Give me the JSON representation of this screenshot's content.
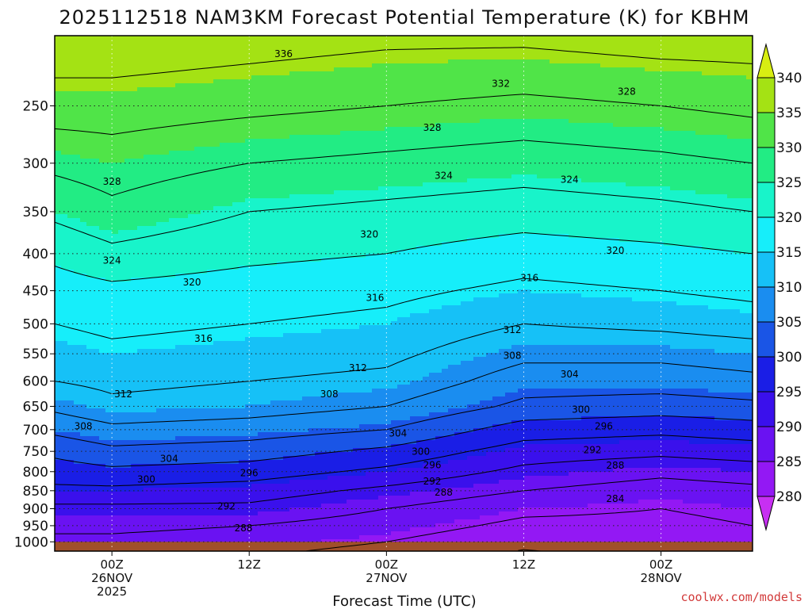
{
  "chart_data": {
    "type": "heatmap",
    "title": "2025112518 NAM3KM Forecast Potential Temperature (K) for KBHM",
    "xlabel": "Forecast Time (UTC)",
    "ylabel": "",
    "credit": "coolwx.com/models",
    "x_hours_range": [
      -5,
      56
    ],
    "x_ticks": [
      {
        "hour": 0,
        "lines": [
          "00Z",
          "26NOV",
          "2025"
        ]
      },
      {
        "hour": 12,
        "lines": [
          "12Z"
        ]
      },
      {
        "hour": 24,
        "lines": [
          "00Z",
          "27NOV"
        ]
      },
      {
        "hour": 36,
        "lines": [
          "12Z"
        ]
      },
      {
        "hour": 48,
        "lines": [
          "00Z",
          "28NOV"
        ]
      }
    ],
    "y_scale": "log",
    "y_range": [
      1030,
      200
    ],
    "y_ticks": [
      250,
      300,
      350,
      400,
      450,
      500,
      550,
      600,
      650,
      700,
      750,
      800,
      850,
      900,
      950,
      1000
    ],
    "grid": true,
    "colorbar": {
      "levels": [
        280,
        285,
        290,
        295,
        300,
        305,
        310,
        315,
        320,
        325,
        330,
        335,
        340
      ],
      "colors": [
        "#c72ff2",
        "#9318f4",
        "#6a12f2",
        "#3a10ec",
        "#1a1ee6",
        "#1a55e6",
        "#1a8df0",
        "#16c1f7",
        "#16eefa",
        "#18f4ca",
        "#22ec84",
        "#50e448",
        "#a4e214",
        "#d8ee12"
      ]
    },
    "profile_samples": [
      {
        "hour": -5,
        "pressure": [
          1000,
          950,
          900,
          850,
          800,
          750,
          700,
          650,
          600,
          550,
          500,
          450,
          400,
          350,
          300,
          250,
          200
        ],
        "theta": [
          287,
          289,
          291,
          295,
          298,
          301,
          305,
          309,
          312,
          314,
          316,
          318,
          321,
          325,
          329,
          334,
          339
        ]
      },
      {
        "hour": 0,
        "pressure": [
          1000,
          950,
          900,
          850,
          800,
          750,
          700,
          650,
          600,
          550,
          500,
          450,
          400,
          350,
          300,
          250,
          200
        ],
        "theta": [
          287,
          289,
          291,
          295,
          299,
          303,
          307,
          311,
          313,
          315,
          317,
          319,
          323,
          327,
          330,
          334,
          339
        ]
      },
      {
        "hour": 12,
        "pressure": [
          1000,
          950,
          900,
          850,
          800,
          750,
          700,
          650,
          600,
          550,
          500,
          450,
          400,
          350,
          300,
          250,
          200
        ],
        "theta": [
          286,
          288,
          291,
          294,
          298,
          302,
          306,
          310,
          312,
          314,
          316,
          318,
          321,
          324,
          328,
          333,
          338
        ]
      },
      {
        "hour": 24,
        "pressure": [
          1000,
          950,
          900,
          850,
          800,
          750,
          700,
          650,
          600,
          550,
          500,
          450,
          400,
          350,
          300,
          250,
          200
        ],
        "theta": [
          284,
          286,
          288,
          291,
          295,
          299,
          304,
          308,
          311,
          313,
          315,
          317,
          320,
          323,
          327,
          332,
          337
        ]
      },
      {
        "hour": 36,
        "pressure": [
          1000,
          950,
          900,
          850,
          800,
          750,
          700,
          650,
          600,
          550,
          500,
          450,
          400,
          350,
          300,
          250,
          200
        ],
        "theta": [
          281,
          283,
          285,
          288,
          291,
          294,
          298,
          303,
          306,
          309,
          312,
          315,
          318,
          322,
          326,
          331,
          337
        ]
      },
      {
        "hour": 48,
        "pressure": [
          1000,
          950,
          900,
          850,
          800,
          750,
          700,
          650,
          600,
          550,
          500,
          450,
          400,
          350,
          300,
          250,
          200
        ],
        "theta": [
          282,
          283,
          284,
          286,
          289,
          293,
          297,
          302,
          306,
          309,
          313,
          316,
          319,
          323,
          327,
          332,
          338
        ]
      },
      {
        "hour": 56,
        "pressure": [
          1000,
          950,
          900,
          850,
          800,
          750,
          700,
          650,
          600,
          550,
          500,
          450,
          400,
          350,
          300,
          250,
          200
        ],
        "theta": [
          283,
          284,
          285,
          287,
          290,
          294,
          298,
          303,
          307,
          310,
          314,
          317,
          320,
          324,
          328,
          333,
          338
        ]
      }
    ],
    "contour_labels": [
      {
        "text": "336",
        "hour": 15,
        "pressure": 212
      },
      {
        "text": "332",
        "hour": 34,
        "pressure": 233
      },
      {
        "text": "328",
        "hour": 45,
        "pressure": 239
      },
      {
        "text": "328",
        "hour": 28,
        "pressure": 268
      },
      {
        "text": "328",
        "hour": 0,
        "pressure": 318
      },
      {
        "text": "324",
        "hour": 29,
        "pressure": 312
      },
      {
        "text": "324",
        "hour": 40,
        "pressure": 316
      },
      {
        "text": "324",
        "hour": 0,
        "pressure": 409
      },
      {
        "text": "320",
        "hour": 22.5,
        "pressure": 376
      },
      {
        "text": "320",
        "hour": 44,
        "pressure": 396
      },
      {
        "text": "320",
        "hour": 7,
        "pressure": 438
      },
      {
        "text": "316",
        "hour": 36.5,
        "pressure": 432
      },
      {
        "text": "316",
        "hour": 23,
        "pressure": 460
      },
      {
        "text": "316",
        "hour": 8,
        "pressure": 524
      },
      {
        "text": "312",
        "hour": 35,
        "pressure": 510
      },
      {
        "text": "312",
        "hour": 21.5,
        "pressure": 575
      },
      {
        "text": "312",
        "hour": 1,
        "pressure": 625
      },
      {
        "text": "308",
        "hour": 35,
        "pressure": 553
      },
      {
        "text": "308",
        "hour": 19,
        "pressure": 625
      },
      {
        "text": "308",
        "hour": -2.5,
        "pressure": 692
      },
      {
        "text": "304",
        "hour": 40,
        "pressure": 587
      },
      {
        "text": "304",
        "hour": 25,
        "pressure": 708
      },
      {
        "text": "304",
        "hour": 5,
        "pressure": 768
      },
      {
        "text": "300",
        "hour": 41,
        "pressure": 657
      },
      {
        "text": "300",
        "hour": 27,
        "pressure": 751
      },
      {
        "text": "300",
        "hour": 3,
        "pressure": 820
      },
      {
        "text": "296",
        "hour": 43,
        "pressure": 692
      },
      {
        "text": "296",
        "hour": 12,
        "pressure": 803
      },
      {
        "text": "296",
        "hour": 28,
        "pressure": 783
      },
      {
        "text": "292",
        "hour": 42,
        "pressure": 747
      },
      {
        "text": "292",
        "hour": 28,
        "pressure": 825
      },
      {
        "text": "292",
        "hour": 10,
        "pressure": 893
      },
      {
        "text": "288",
        "hour": 44,
        "pressure": 784
      },
      {
        "text": "288",
        "hour": 29,
        "pressure": 855
      },
      {
        "text": "288",
        "hour": 11.5,
        "pressure": 957
      },
      {
        "text": "284",
        "hour": 44,
        "pressure": 872
      }
    ]
  }
}
